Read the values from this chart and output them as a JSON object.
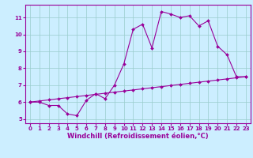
{
  "line1_x": [
    0,
    1,
    2,
    3,
    4,
    5,
    6,
    7,
    8,
    9,
    10,
    11,
    12,
    13,
    14,
    15,
    16,
    17,
    18,
    19,
    20,
    21,
    22,
    23
  ],
  "line1_y": [
    6.0,
    6.0,
    5.8,
    5.8,
    5.3,
    5.2,
    6.1,
    6.5,
    6.2,
    7.0,
    8.25,
    10.3,
    10.6,
    9.2,
    11.35,
    11.2,
    11.0,
    11.1,
    10.5,
    10.8,
    9.3,
    8.8,
    7.5,
    7.5
  ],
  "line2_x": [
    0,
    1,
    2,
    3,
    4,
    5,
    6,
    7,
    8,
    9,
    10,
    11,
    12,
    13,
    14,
    15,
    16,
    17,
    18,
    19,
    20,
    21,
    22,
    23
  ],
  "line2_y": [
    6.0,
    6.065,
    6.13,
    6.196,
    6.261,
    6.326,
    6.391,
    6.457,
    6.522,
    6.587,
    6.652,
    6.717,
    6.783,
    6.848,
    6.913,
    6.978,
    7.043,
    7.109,
    7.174,
    7.239,
    7.304,
    7.37,
    7.435,
    7.5
  ],
  "color": "#990099",
  "bg_color": "#cceeff",
  "grid_color": "#99cccc",
  "xlabel": "Windchill (Refroidissement éolien,°C)",
  "xlim": [
    -0.5,
    23.5
  ],
  "ylim": [
    4.75,
    11.75
  ],
  "yticks": [
    5,
    6,
    7,
    8,
    9,
    10,
    11
  ],
  "xticks": [
    0,
    1,
    2,
    3,
    4,
    5,
    6,
    7,
    8,
    9,
    10,
    11,
    12,
    13,
    14,
    15,
    16,
    17,
    18,
    19,
    20,
    21,
    22,
    23
  ],
  "tick_fontsize": 5.0,
  "xlabel_fontsize": 6.0,
  "marker": "D",
  "markersize": 2.0,
  "linewidth": 0.8
}
